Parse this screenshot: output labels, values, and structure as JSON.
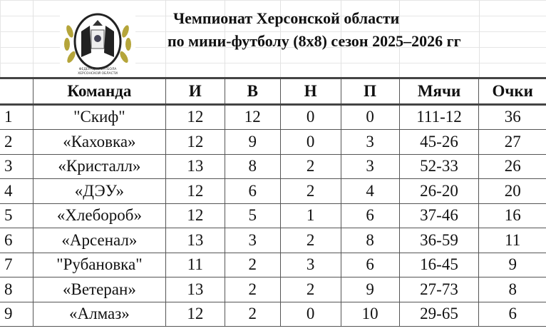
{
  "title": {
    "line1": "Чемпионат Херсонской области",
    "line2": "по мини-футболу (8х8) сезон 2025–2026 гг"
  },
  "logo": {
    "text": "ФЕДЕРАЦИЯ ФУТБОЛА ХЕРСОНСКОЙ ОБЛАСТИ",
    "colors": {
      "wreath": "#b5a53a",
      "ball": "#222222"
    }
  },
  "table": {
    "headers": [
      "",
      "Команда",
      "И",
      "В",
      "Н",
      "П",
      "Мячи",
      "Очки"
    ],
    "rows": [
      [
        "1",
        "\"Скиф\"",
        "12",
        "12",
        "0",
        "0",
        "111-12",
        "36"
      ],
      [
        "2",
        "«Каховка»",
        "12",
        "9",
        "0",
        "3",
        "45-26",
        "27"
      ],
      [
        "3",
        "«Кристалл»",
        "13",
        "8",
        "2",
        "3",
        "52-33",
        "26"
      ],
      [
        "4",
        "«ДЭУ»",
        "12",
        "6",
        "2",
        "4",
        "26-20",
        "20"
      ],
      [
        "5",
        "«Хлебороб»",
        "12",
        "5",
        "1",
        "6",
        "37-46",
        "16"
      ],
      [
        "6",
        "«Арсенал»",
        "13",
        "3",
        "2",
        "8",
        "36-59",
        "11"
      ],
      [
        "7",
        "\"Рубановка\"",
        "11",
        "2",
        "3",
        "6",
        "16-45",
        "9"
      ],
      [
        "8",
        "«Ветеран»",
        "13",
        "2",
        "2",
        "9",
        "27-73",
        "8"
      ],
      [
        "9",
        "«Алмаз»",
        "12",
        "2",
        "0",
        "10",
        "29-65",
        "6"
      ]
    ]
  }
}
